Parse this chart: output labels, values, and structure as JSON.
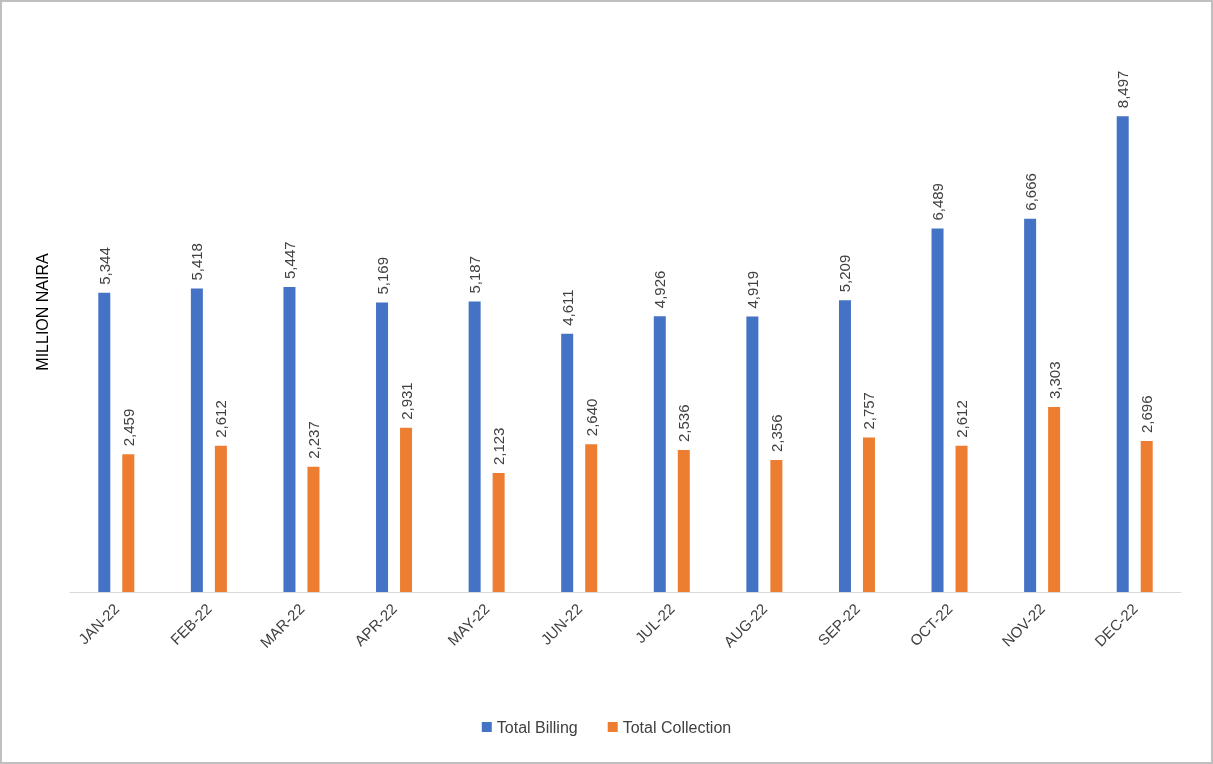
{
  "chart_data": {
    "type": "bar",
    "ylabel": "MILLION NAIRA",
    "categories": [
      "JAN-22",
      "FEB-22",
      "MAR-22",
      "APR-22",
      "MAY-22",
      "JUN-22",
      "JUL-22",
      "AUG-22",
      "SEP-22",
      "OCT-22",
      "NOV-22",
      "DEC-22"
    ],
    "series": [
      {
        "name": "Total Billing",
        "color": "#4472c4",
        "values": [
          5344,
          5418,
          5447,
          5169,
          5187,
          4611,
          4926,
          4919,
          5209,
          6489,
          6666,
          8497
        ],
        "value_labels": [
          "5,344",
          "5,418",
          "5,447",
          "5,169",
          "5,187",
          "4,611",
          "4,926",
          "4,919",
          "5,209",
          "6,489",
          "6,666",
          "8,497"
        ]
      },
      {
        "name": "Total Collection",
        "color": "#ed7d31",
        "values": [
          2459,
          2612,
          2237,
          2931,
          2123,
          2640,
          2536,
          2356,
          2757,
          2612,
          3303,
          2696
        ],
        "value_labels": [
          "2,459",
          "2,612",
          "2,237",
          "2,931",
          "2,123",
          "2,640",
          "2,536",
          "2,356",
          "2,757",
          "2,612",
          "3,303",
          "2,696"
        ]
      }
    ],
    "legend": "bottom",
    "grid": false
  }
}
